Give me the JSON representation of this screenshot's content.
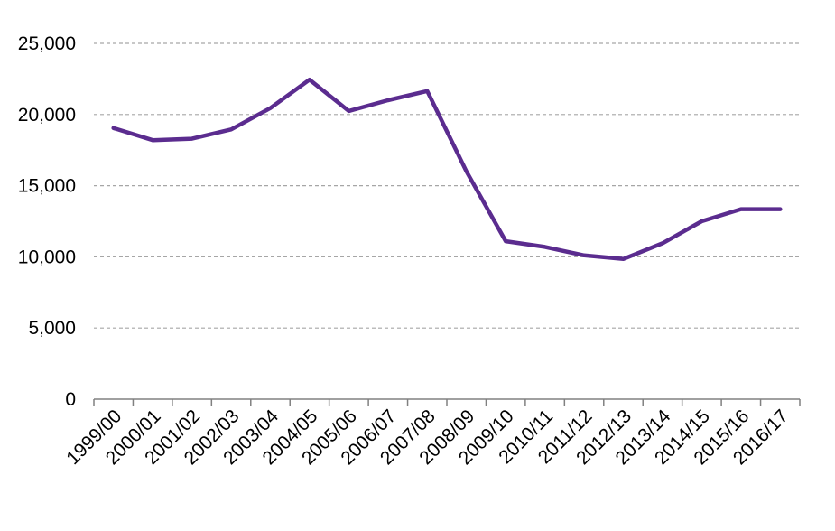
{
  "chart_data": {
    "type": "line",
    "categories": [
      "1999/00",
      "2000/01",
      "2001/02",
      "2002/03",
      "2003/04",
      "2004/05",
      "2005/06",
      "2006/07",
      "2007/08",
      "2008/09",
      "2009/10",
      "2010/11",
      "2011/12",
      "2012/13",
      "2013/14",
      "2014/15",
      "2015/16",
      "2016/17"
    ],
    "series": [
      {
        "values": [
          19050,
          18200,
          18300,
          18950,
          20450,
          22450,
          20250,
          21000,
          21650,
          16000,
          11100,
          10700,
          10100,
          9850,
          10950,
          12500,
          13350,
          13350
        ],
        "color": "#5b2c8f"
      }
    ],
    "y_ticks": [
      "0",
      "5,000",
      "10,000",
      "15,000",
      "20,000",
      "25,000"
    ],
    "ylim": [
      0,
      25000
    ],
    "grid": true,
    "legend": "none",
    "title": "",
    "xlabel": "",
    "ylabel": ""
  }
}
